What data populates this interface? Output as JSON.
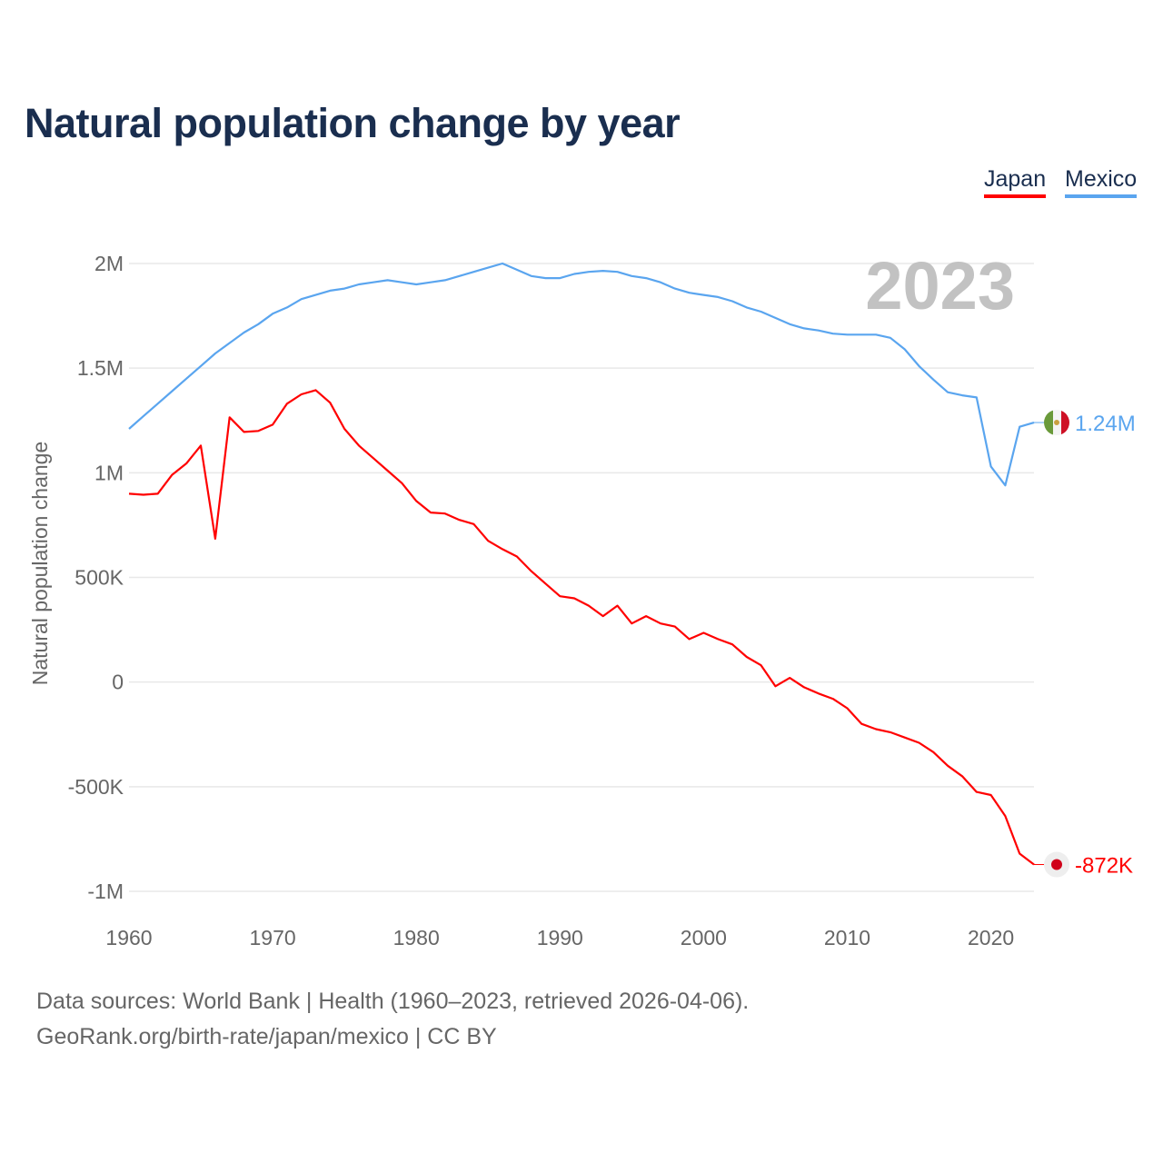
{
  "chart_data": {
    "type": "line",
    "title": "Natural population change by year",
    "ylabel": "Natural population change",
    "xlabel": "",
    "xlim": [
      1960,
      2023
    ],
    "ylim": [
      -1000000,
      2000000
    ],
    "x_ticks": [
      1960,
      1970,
      1980,
      1990,
      2000,
      2010,
      2020
    ],
    "x_tick_labels": [
      "1960",
      "1970",
      "1980",
      "1990",
      "2000",
      "2010",
      "2020"
    ],
    "y_ticks": [
      -1000000,
      -500000,
      0,
      500000,
      1000000,
      1500000,
      2000000
    ],
    "y_tick_labels": [
      "-1M",
      "-500K",
      "0",
      "500K",
      "1M",
      "1.5M",
      "2M"
    ],
    "grid": true,
    "legend_position": "top-right",
    "year_watermark": "2023",
    "x": [
      1960,
      1961,
      1962,
      1963,
      1964,
      1965,
      1966,
      1967,
      1968,
      1969,
      1970,
      1971,
      1972,
      1973,
      1974,
      1975,
      1976,
      1977,
      1978,
      1979,
      1980,
      1981,
      1982,
      1983,
      1984,
      1985,
      1986,
      1987,
      1988,
      1989,
      1990,
      1991,
      1992,
      1993,
      1994,
      1995,
      1996,
      1997,
      1998,
      1999,
      2000,
      2001,
      2002,
      2003,
      2004,
      2005,
      2006,
      2007,
      2008,
      2009,
      2010,
      2011,
      2012,
      2013,
      2014,
      2015,
      2016,
      2017,
      2018,
      2019,
      2020,
      2021,
      2022,
      2023
    ],
    "series": [
      {
        "name": "Japan",
        "color": "#ff0000",
        "end_label": "-872K",
        "flag": "japan-flag",
        "values": [
          900000,
          895000,
          900000,
          990000,
          1045000,
          1130000,
          685000,
          1265000,
          1195000,
          1200000,
          1230000,
          1330000,
          1375000,
          1395000,
          1335000,
          1210000,
          1130000,
          1070000,
          1010000,
          950000,
          865000,
          810000,
          805000,
          775000,
          755000,
          675000,
          635000,
          600000,
          530000,
          470000,
          410000,
          400000,
          365000,
          315000,
          365000,
          280000,
          315000,
          280000,
          265000,
          205000,
          235000,
          205000,
          180000,
          120000,
          80000,
          -20000,
          20000,
          -25000,
          -55000,
          -80000,
          -125000,
          -200000,
          -225000,
          -240000,
          -265000,
          -290000,
          -335000,
          -400000,
          -450000,
          -525000,
          -540000,
          -640000,
          -820000,
          -872000
        ]
      },
      {
        "name": "Mexico",
        "color": "#5aa5ef",
        "end_label": "1.24M",
        "flag": "mexico-flag",
        "values": [
          1210000,
          1270000,
          1330000,
          1390000,
          1450000,
          1510000,
          1570000,
          1620000,
          1670000,
          1710000,
          1760000,
          1790000,
          1830000,
          1850000,
          1870000,
          1880000,
          1900000,
          1910000,
          1920000,
          1910000,
          1900000,
          1910000,
          1920000,
          1940000,
          1960000,
          1980000,
          2000000,
          1970000,
          1940000,
          1930000,
          1930000,
          1950000,
          1960000,
          1965000,
          1960000,
          1940000,
          1930000,
          1910000,
          1880000,
          1860000,
          1850000,
          1840000,
          1820000,
          1790000,
          1770000,
          1740000,
          1710000,
          1690000,
          1680000,
          1665000,
          1660000,
          1660000,
          1660000,
          1645000,
          1590000,
          1510000,
          1445000,
          1385000,
          1370000,
          1360000,
          1030000,
          940000,
          1220000,
          1240000
        ]
      }
    ]
  },
  "footer": {
    "line1": "Data sources: World Bank | Health (1960–2023, retrieved 2026-04-06).",
    "line2": "GeoRank.org/birth-rate/japan/mexico | CC BY"
  }
}
